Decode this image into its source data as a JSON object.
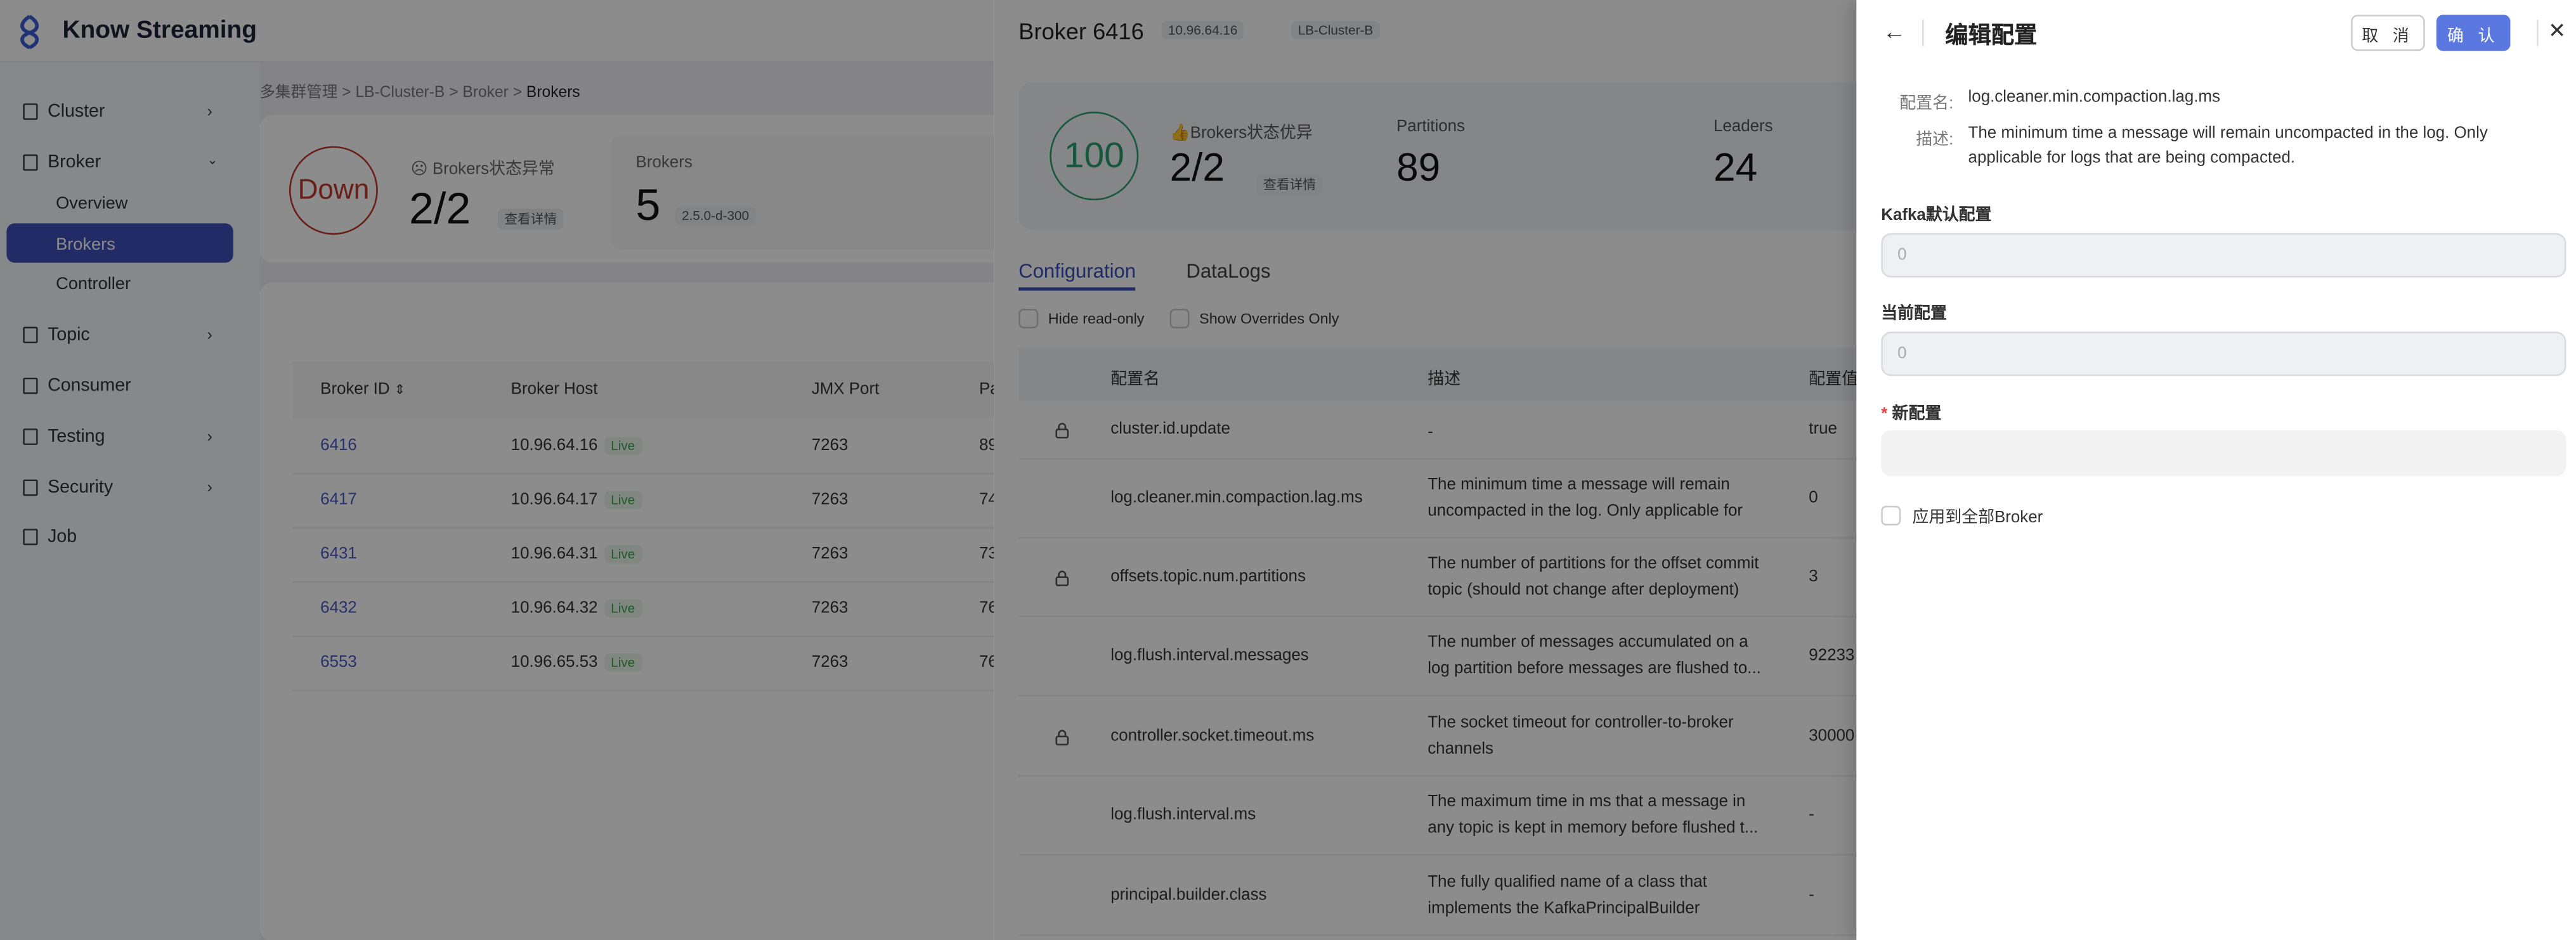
{
  "app": {
    "name": "Know Streaming"
  },
  "sidebar": {
    "items": [
      {
        "label": "Cluster",
        "icon": "cluster-icon"
      },
      {
        "label": "Broker",
        "icon": "broker-icon"
      },
      {
        "label": "Overview"
      },
      {
        "label": "Brokers"
      },
      {
        "label": "Controller"
      },
      {
        "label": "Topic",
        "icon": "topic-icon"
      },
      {
        "label": "Consumer",
        "icon": "consumer-icon"
      },
      {
        "label": "Testing",
        "icon": "testing-icon"
      },
      {
        "label": "Security",
        "icon": "security-icon"
      },
      {
        "label": "Job",
        "icon": "job-icon"
      }
    ]
  },
  "breadcrumb": [
    "多集群管理",
    "LB-Cluster-B",
    "Broker",
    "Brokers"
  ],
  "summary": {
    "health": "Down",
    "status_label": "Brokers状态异常",
    "ratio": "2/2",
    "detail_link": "查看详情",
    "brokers_label": "Brokers",
    "brokers_count": "5",
    "version": "2.5.0-d-300"
  },
  "brokers_table": {
    "columns": [
      "Broker ID",
      "Broker Host",
      "JMX Port",
      "Pa"
    ],
    "rows": [
      {
        "id": "6416",
        "host": "10.96.64.16",
        "status": "Live",
        "jmx": "7263",
        "partitions": "89"
      },
      {
        "id": "6417",
        "host": "10.96.64.17",
        "status": "Live",
        "jmx": "7263",
        "partitions": "74"
      },
      {
        "id": "6431",
        "host": "10.96.64.31",
        "status": "Live",
        "jmx": "7263",
        "partitions": "73"
      },
      {
        "id": "6432",
        "host": "10.96.64.32",
        "status": "Live",
        "jmx": "7263",
        "partitions": "76"
      },
      {
        "id": "6553",
        "host": "10.96.65.53",
        "status": "Live",
        "jmx": "7263",
        "partitions": "76"
      }
    ]
  },
  "broker_drawer": {
    "title": "Broker 6416",
    "host_tag": "10.96.64.16",
    "cluster_tag": "LB-Cluster-B",
    "score": "100",
    "status_label": "Brokers状态优异",
    "ratio": "2/2",
    "detail_link": "查看详情",
    "partitions_label": "Partitions",
    "partitions": "89",
    "leaders_label": "Leaders",
    "leaders": "24",
    "tabs": [
      {
        "label": "Configuration",
        "active": true
      },
      {
        "label": "DataLogs",
        "active": false
      }
    ],
    "filters": [
      {
        "label": "Hide read-only",
        "checked": false
      },
      {
        "label": "Show Overrides Only",
        "checked": false
      }
    ],
    "config_columns": [
      "配置名",
      "描述",
      "配置值"
    ],
    "config_rows": [
      {
        "locked": true,
        "name": "cluster.id.update",
        "desc": "-",
        "value": "true"
      },
      {
        "locked": false,
        "name": "log.cleaner.min.compaction.lag.ms",
        "desc": "The minimum time a message will remain uncompacted in the log. Only applicable for log...",
        "value": "0"
      },
      {
        "locked": true,
        "name": "offsets.topic.num.partitions",
        "desc": "The number of partitions for the offset commit topic (should not change after deployment)",
        "value": "3"
      },
      {
        "locked": false,
        "name": "log.flush.interval.messages",
        "desc": "The number of messages accumulated on a log partition before messages are flushed to...",
        "value": "92233"
      },
      {
        "locked": true,
        "name": "controller.socket.timeout.ms",
        "desc": "The socket timeout for controller-to-broker channels",
        "value": "30000"
      },
      {
        "locked": false,
        "name": "log.flush.interval.ms",
        "desc": "The maximum time in ms that a message in any topic is kept in memory before flushed t...",
        "value": "-"
      },
      {
        "locked": false,
        "name": "principal.builder.class",
        "desc": "The fully qualified name of a class that implements the KafkaPrincipalBuilder interface, ...",
        "value": "-"
      }
    ]
  },
  "edit_drawer": {
    "title": "编辑配置",
    "cancel": "取 消",
    "confirm": "确 认",
    "name_label": "配置名:",
    "name_value": "log.cleaner.min.compaction.lag.ms",
    "desc_label": "描述:",
    "desc_value": "The minimum time a message will remain uncompacted in the log. Only applicable for logs that are being compacted.",
    "default_label": "Kafka默认配置",
    "default_value": "0",
    "current_label": "当前配置",
    "current_value": "0",
    "new_label": "新配置",
    "new_required": "*",
    "new_value": "",
    "apply_all_label": "应用到全部Broker",
    "apply_all_checked": false
  },
  "colors": {
    "primary": "#5a78e0",
    "danger": "#d9534f",
    "success": "#2e9e6e",
    "live": "#3ca54b"
  }
}
